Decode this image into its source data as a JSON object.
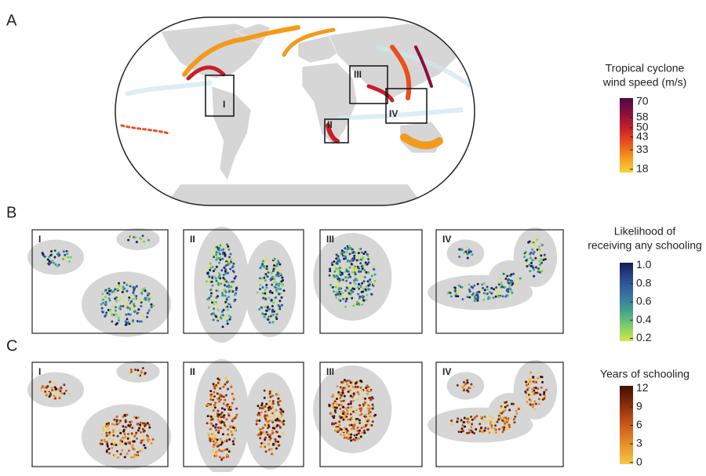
{
  "figure": {
    "map_a": {
      "label": "A",
      "regions": [
        "I",
        "II",
        "III",
        "IV"
      ]
    },
    "rows": [
      {
        "label": "B",
        "panels": [
          "I",
          "II",
          "III",
          "IV"
        ]
      },
      {
        "label": "C",
        "panels": [
          "I",
          "II",
          "III",
          "IV"
        ]
      }
    ],
    "legends": [
      {
        "title_lines": [
          "Tropical cyclone",
          "wind speed (m/s)"
        ],
        "lim": [
          15.5,
          73
        ],
        "colors": [
          "#f7d23a",
          "#f39a1b",
          "#e8501d",
          "#c81e2a",
          "#8a0f3c",
          "#4a0a4a"
        ],
        "ticks": [
          70,
          58,
          50,
          43,
          33,
          18
        ]
      },
      {
        "title_lines": [
          "Likelihood of",
          "receiving any schooling"
        ],
        "lim": [
          0.17,
          1.03
        ],
        "colors": [
          "#d4e64a",
          "#7ccb6d",
          "#3f9f8f",
          "#3a6ea5",
          "#2a4a90",
          "#121f54"
        ],
        "ticks": [
          {
            "value": 1,
            "label": "1.0"
          },
          {
            "value": 0.8,
            "label": "0.8"
          },
          {
            "value": 0.6,
            "label": "0.6"
          },
          {
            "value": 0.4,
            "label": "0.4"
          },
          {
            "value": 0.2,
            "label": "0.2"
          }
        ]
      },
      {
        "title_lines": [
          "Years of schooling"
        ],
        "lim": [
          -0.3,
          12.4
        ],
        "colors": [
          "#f3c94a",
          "#e8902a",
          "#c85a18",
          "#8c2e0c",
          "#3e0e04"
        ],
        "ticks": [
          12,
          9,
          6,
          3,
          0
        ]
      }
    ]
  }
}
